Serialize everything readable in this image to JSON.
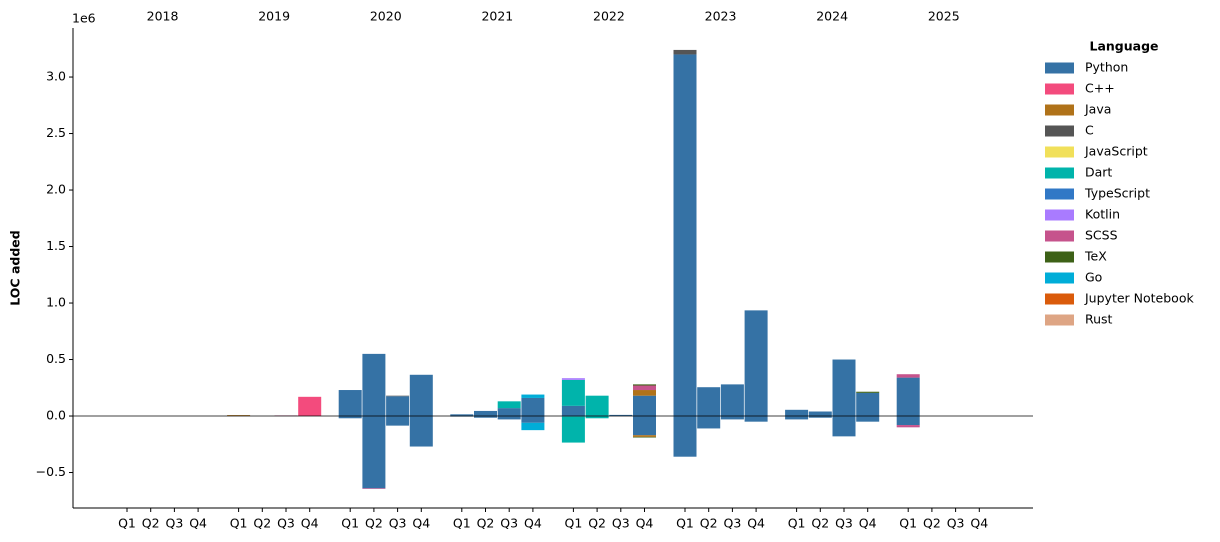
{
  "chart_data": {
    "type": "bar",
    "stacked": true,
    "y_label": "LOC added",
    "y_offset_label": "1e6",
    "legend_title": "Language",
    "legend_position": "right",
    "years": [
      "2018",
      "2019",
      "2020",
      "2021",
      "2022",
      "2023",
      "2024",
      "2025"
    ],
    "categories": [
      "Q1",
      "Q2",
      "Q3",
      "Q4",
      "Q1",
      "Q2",
      "Q3",
      "Q4",
      "Q1",
      "Q2",
      "Q3",
      "Q4",
      "Q1",
      "Q2",
      "Q3",
      "Q4",
      "Q1",
      "Q2",
      "Q3",
      "Q4",
      "Q1",
      "Q2",
      "Q3",
      "Q4",
      "Q1",
      "Q2",
      "Q3",
      "Q4",
      "Q1",
      "Q2",
      "Q3",
      "Q4"
    ],
    "ylim": [
      -814000,
      3434000
    ],
    "yticks": [
      {
        "value": -500000,
        "label": "−0.5"
      },
      {
        "value": 0,
        "label": "0.0"
      },
      {
        "value": 500000,
        "label": "0.5"
      },
      {
        "value": 1000000,
        "label": "1.0"
      },
      {
        "value": 1500000,
        "label": "1.5"
      },
      {
        "value": 2000000,
        "label": "2.0"
      },
      {
        "value": 2500000,
        "label": "2.5"
      },
      {
        "value": 3000000,
        "label": "3.0"
      }
    ],
    "series": [
      {
        "name": "Python",
        "color": "#3572a5",
        "values": [
          0,
          0,
          0,
          0,
          0,
          0,
          0,
          0,
          230000,
          550000,
          175000,
          365000,
          15000,
          45000,
          70000,
          160000,
          90000,
          5000,
          10000,
          180000,
          3200000,
          255000,
          280000,
          935000,
          55000,
          40000,
          500000,
          205000,
          340000,
          0,
          0,
          0
        ],
        "negative_values": [
          0,
          0,
          0,
          0,
          0,
          0,
          0,
          0,
          -20000,
          -640000,
          -85000,
          -270000,
          -5000,
          -15000,
          -30000,
          -60000,
          -5000,
          0,
          0,
          -170000,
          -360000,
          -110000,
          -30000,
          -50000,
          -30000,
          -15000,
          -180000,
          -50000,
          -80000,
          0,
          0,
          0
        ]
      },
      {
        "name": "C++",
        "color": "#f34b7d",
        "values": [
          0,
          0,
          0,
          0,
          0,
          0,
          0,
          170000,
          0,
          0,
          0,
          0,
          0,
          0,
          0,
          0,
          0,
          0,
          0,
          0,
          0,
          0,
          0,
          0,
          0,
          0,
          0,
          0,
          0,
          0,
          0,
          0
        ],
        "negative_values": [
          0,
          0,
          0,
          0,
          0,
          0,
          0,
          0,
          0,
          0,
          0,
          0,
          0,
          0,
          0,
          0,
          0,
          0,
          0,
          0,
          0,
          0,
          0,
          0,
          0,
          0,
          0,
          0,
          0,
          0,
          0,
          0
        ]
      },
      {
        "name": "Java",
        "color": "#b07219",
        "values": [
          0,
          0,
          0,
          0,
          8000,
          0,
          0,
          0,
          0,
          0,
          0,
          0,
          0,
          0,
          0,
          0,
          0,
          0,
          0,
          50000,
          0,
          0,
          0,
          0,
          0,
          0,
          0,
          0,
          0,
          0,
          0,
          0
        ],
        "negative_values": [
          0,
          0,
          0,
          0,
          0,
          0,
          0,
          0,
          0,
          0,
          0,
          0,
          0,
          0,
          0,
          0,
          0,
          0,
          0,
          -15000,
          0,
          0,
          0,
          0,
          0,
          0,
          0,
          0,
          0,
          0,
          0,
          0
        ]
      },
      {
        "name": "C",
        "color": "#555555",
        "values": [
          0,
          0,
          0,
          0,
          0,
          0,
          0,
          0,
          0,
          0,
          5000,
          0,
          0,
          0,
          0,
          0,
          0,
          0,
          0,
          0,
          40000,
          0,
          0,
          0,
          0,
          0,
          0,
          0,
          0,
          0,
          0,
          0
        ],
        "negative_values": [
          0,
          0,
          0,
          0,
          0,
          0,
          0,
          0,
          0,
          0,
          0,
          0,
          0,
          0,
          0,
          0,
          0,
          0,
          0,
          0,
          0,
          0,
          0,
          0,
          0,
          0,
          0,
          0,
          0,
          0,
          0,
          0
        ]
      },
      {
        "name": "JavaScript",
        "color": "#f1e05a",
        "values": [
          0,
          0,
          0,
          0,
          0,
          0,
          0,
          0,
          0,
          0,
          0,
          0,
          0,
          0,
          0,
          0,
          0,
          0,
          0,
          0,
          0,
          0,
          0,
          0,
          0,
          0,
          0,
          0,
          0,
          0,
          0,
          0
        ],
        "negative_values": [
          0,
          0,
          0,
          0,
          0,
          0,
          0,
          0,
          0,
          0,
          0,
          0,
          0,
          0,
          0,
          0,
          0,
          0,
          0,
          0,
          0,
          0,
          0,
          0,
          0,
          0,
          0,
          0,
          0,
          0,
          0,
          0
        ]
      },
      {
        "name": "Dart",
        "color": "#00b4ab",
        "values": [
          0,
          0,
          0,
          0,
          0,
          0,
          0,
          0,
          0,
          0,
          0,
          0,
          0,
          0,
          60000,
          0,
          230000,
          175000,
          0,
          0,
          0,
          0,
          0,
          0,
          0,
          0,
          0,
          0,
          0,
          0,
          0,
          0
        ],
        "negative_values": [
          0,
          0,
          0,
          0,
          0,
          0,
          0,
          0,
          0,
          0,
          0,
          0,
          0,
          0,
          0,
          0,
          -230000,
          -20000,
          0,
          0,
          0,
          0,
          0,
          0,
          0,
          0,
          0,
          0,
          0,
          0,
          0,
          0
        ]
      },
      {
        "name": "TypeScript",
        "color": "#3178c6",
        "values": [
          0,
          0,
          0,
          0,
          0,
          0,
          0,
          0,
          0,
          0,
          0,
          0,
          0,
          0,
          0,
          0,
          0,
          0,
          0,
          0,
          0,
          0,
          0,
          0,
          0,
          0,
          0,
          0,
          0,
          0,
          0,
          0
        ],
        "negative_values": [
          0,
          0,
          0,
          0,
          0,
          0,
          0,
          0,
          0,
          0,
          0,
          0,
          0,
          0,
          0,
          0,
          0,
          0,
          0,
          0,
          0,
          0,
          0,
          0,
          0,
          0,
          0,
          0,
          0,
          0,
          0,
          0
        ]
      },
      {
        "name": "Kotlin",
        "color": "#a97bff",
        "values": [
          0,
          0,
          0,
          0,
          0,
          0,
          0,
          0,
          0,
          0,
          0,
          0,
          0,
          0,
          0,
          0,
          15000,
          0,
          0,
          0,
          0,
          0,
          0,
          0,
          0,
          0,
          0,
          0,
          0,
          0,
          0,
          0
        ],
        "negative_values": [
          0,
          0,
          0,
          0,
          0,
          0,
          0,
          0,
          0,
          0,
          0,
          0,
          0,
          0,
          0,
          0,
          0,
          0,
          0,
          0,
          0,
          0,
          0,
          0,
          0,
          0,
          0,
          0,
          0,
          0,
          0,
          0
        ]
      },
      {
        "name": "SCSS",
        "color": "#c6538c",
        "values": [
          0,
          0,
          0,
          0,
          0,
          0,
          5000,
          0,
          0,
          0,
          0,
          0,
          0,
          0,
          0,
          0,
          0,
          0,
          0,
          40000,
          0,
          0,
          0,
          0,
          0,
          0,
          0,
          0,
          30000,
          0,
          0,
          0
        ],
        "negative_values": [
          0,
          0,
          0,
          0,
          0,
          0,
          0,
          0,
          0,
          -5000,
          0,
          0,
          0,
          0,
          0,
          0,
          0,
          0,
          0,
          0,
          0,
          0,
          0,
          0,
          0,
          0,
          0,
          0,
          -20000,
          0,
          0,
          0
        ]
      },
      {
        "name": "TeX",
        "color": "#3d6117",
        "values": [
          0,
          0,
          0,
          0,
          0,
          0,
          0,
          0,
          0,
          0,
          0,
          0,
          0,
          0,
          0,
          0,
          0,
          0,
          0,
          10000,
          0,
          0,
          0,
          0,
          0,
          0,
          0,
          10000,
          0,
          0,
          0,
          0
        ],
        "negative_values": [
          0,
          0,
          0,
          0,
          0,
          0,
          0,
          0,
          0,
          0,
          0,
          0,
          0,
          0,
          0,
          0,
          0,
          0,
          0,
          -5000,
          0,
          0,
          0,
          0,
          0,
          0,
          0,
          0,
          0,
          0,
          0,
          0
        ]
      },
      {
        "name": "Go",
        "color": "#00add8",
        "values": [
          0,
          0,
          0,
          0,
          0,
          0,
          0,
          0,
          0,
          0,
          0,
          0,
          0,
          0,
          0,
          30000,
          0,
          0,
          0,
          0,
          0,
          0,
          0,
          0,
          0,
          0,
          0,
          0,
          0,
          0,
          0,
          0
        ],
        "negative_values": [
          0,
          0,
          0,
          0,
          0,
          0,
          0,
          0,
          0,
          0,
          0,
          0,
          0,
          0,
          0,
          -65000,
          0,
          0,
          0,
          0,
          0,
          0,
          0,
          0,
          0,
          0,
          0,
          0,
          0,
          0,
          0,
          0
        ]
      },
      {
        "name": "Jupyter Notebook",
        "color": "#da5b0b",
        "values": [
          0,
          0,
          0,
          0,
          0,
          0,
          0,
          0,
          0,
          0,
          0,
          0,
          0,
          0,
          0,
          0,
          0,
          0,
          0,
          0,
          0,
          0,
          0,
          0,
          0,
          0,
          0,
          0,
          0,
          0,
          0,
          0
        ],
        "negative_values": [
          0,
          0,
          0,
          0,
          0,
          0,
          0,
          0,
          0,
          0,
          0,
          0,
          0,
          0,
          0,
          0,
          0,
          0,
          0,
          0,
          0,
          0,
          0,
          0,
          0,
          0,
          0,
          0,
          0,
          0,
          0,
          0
        ]
      },
      {
        "name": "Rust",
        "color": "#dea584",
        "values": [
          0,
          0,
          0,
          0,
          0,
          0,
          0,
          0,
          0,
          0,
          0,
          0,
          0,
          0,
          0,
          0,
          0,
          0,
          0,
          0,
          0,
          0,
          0,
          0,
          0,
          0,
          0,
          0,
          0,
          0,
          0,
          0
        ],
        "negative_values": [
          0,
          0,
          0,
          0,
          0,
          0,
          0,
          0,
          0,
          0,
          0,
          0,
          0,
          0,
          0,
          0,
          0,
          0,
          0,
          0,
          0,
          0,
          0,
          0,
          0,
          0,
          0,
          0,
          0,
          0,
          0,
          0
        ]
      }
    ]
  }
}
